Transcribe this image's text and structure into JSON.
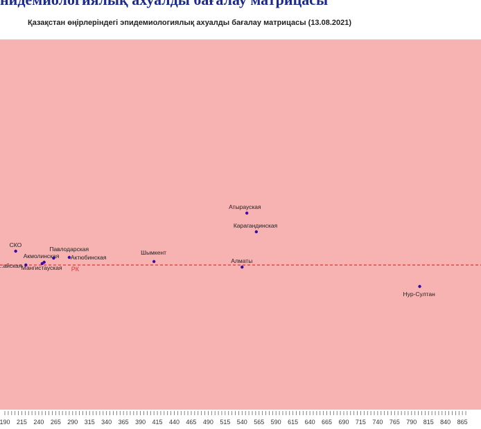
{
  "header": {
    "clipped_text": "нидемиологиялық ахуалды бағалау матрицасы",
    "title": "Қазақстан өңірлеріндегі эпидемиологиялық ахуалды бағалау матрицасы  (13.08.2021)"
  },
  "chart_data": {
    "type": "scatter",
    "title": "Қазақстан өңірлеріндегі эпидемиологиялық ахуалды бағалау матрицасы  (13.08.2021)",
    "xlabel": "",
    "ylabel": "",
    "xlim": [
      190,
      870
    ],
    "x_ticks": [
      "190",
      "215",
      "240",
      "265",
      "290",
      "315",
      "340",
      "365",
      "390",
      "415",
      "440",
      "465",
      "490",
      "515",
      "540",
      "565",
      "590",
      "615",
      "640",
      "665",
      "690",
      "715",
      "740",
      "765",
      "790",
      "815",
      "840",
      "865"
    ],
    "ylim": [
      -1.6,
      2.5
    ],
    "background_color": "#f7b2b2",
    "point_color": "#3a0ca3",
    "reference_line": {
      "label": "РК",
      "x": 290,
      "y": 0,
      "color": "#e03030"
    },
    "points": [
      {
        "label": "СКО",
        "x": 206,
        "y": 0.2
      },
      {
        "label": "Акмолинская",
        "x": 248,
        "y": 0.04
      },
      {
        "label": "Мангистауская",
        "x": 245,
        "y": 0.02
      },
      {
        "label": "...айская",
        "x": 221,
        "y": 0.0
      },
      {
        "label": "Павлодарская",
        "x": 262,
        "y": 0.1
      },
      {
        "label": "Актюбинская",
        "x": 285,
        "y": 0.11
      },
      {
        "label": "Шымкент",
        "x": 410,
        "y": 0.05
      },
      {
        "label": "Атырауская",
        "x": 547,
        "y": 0.75
      },
      {
        "label": "Карагандинская",
        "x": 561,
        "y": 0.48
      },
      {
        "label": "Алматы",
        "x": 540,
        "y": -0.03
      },
      {
        "label": "Нур-Султан",
        "x": 802,
        "y": -0.31
      }
    ]
  }
}
